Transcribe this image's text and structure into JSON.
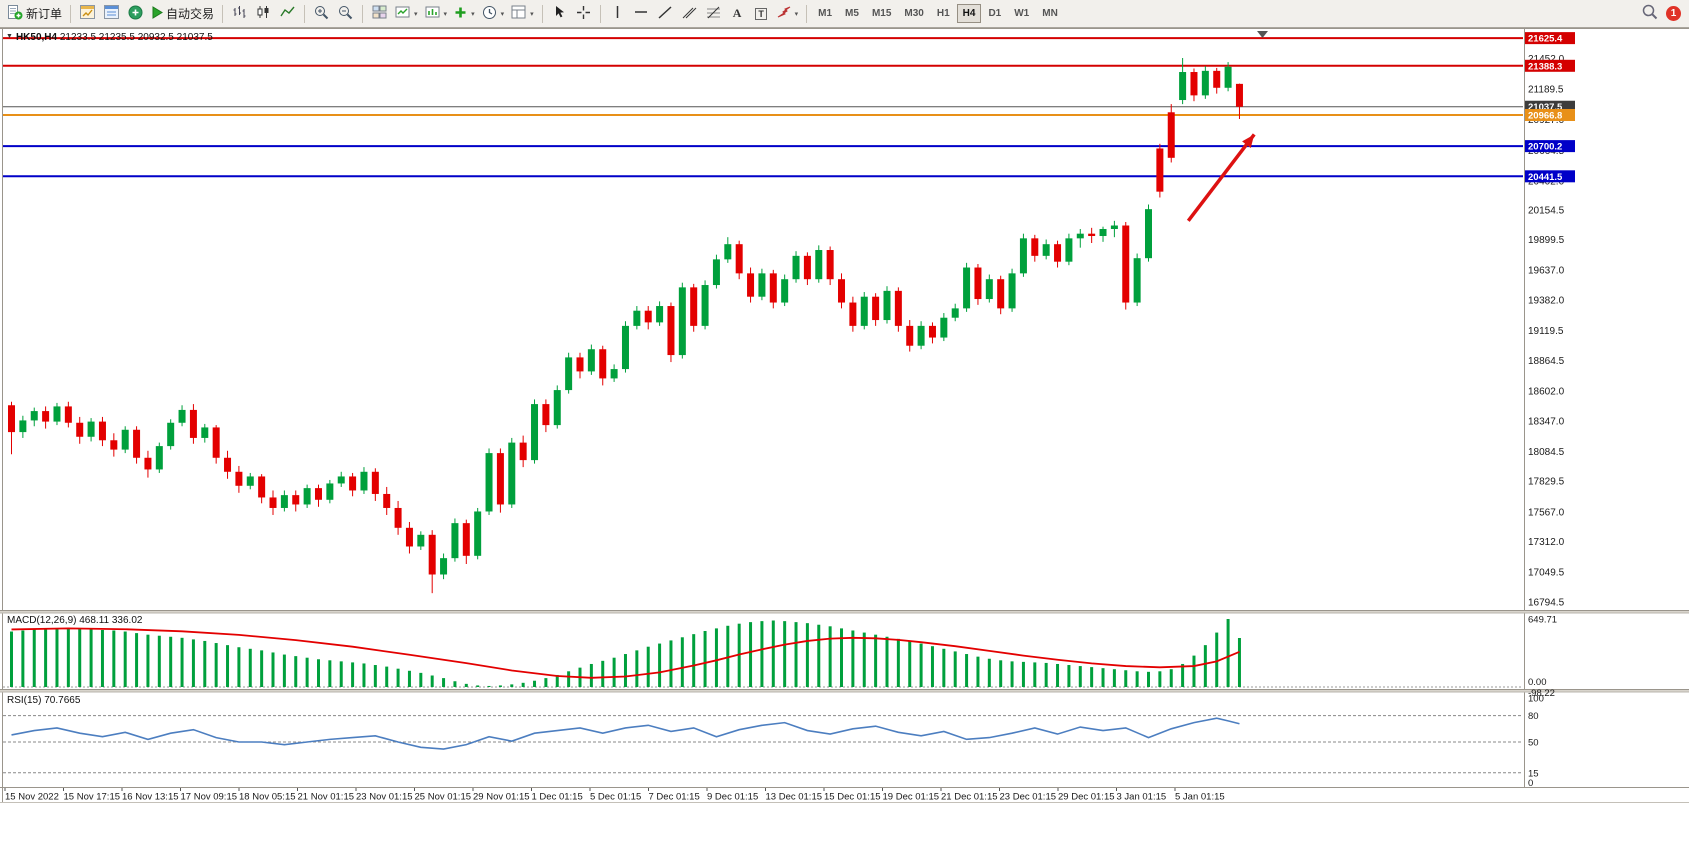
{
  "toolbar": {
    "new_order": "新订单",
    "autotrading": "自动交易",
    "text_tool": "A",
    "text_label_tool": "T",
    "timeframes": [
      {
        "label": "M1",
        "active": false
      },
      {
        "label": "M5",
        "active": false
      },
      {
        "label": "M15",
        "active": false
      },
      {
        "label": "M30",
        "active": false
      },
      {
        "label": "H1",
        "active": false
      },
      {
        "label": "H4",
        "active": true
      },
      {
        "label": "D1",
        "active": false
      },
      {
        "label": "W1",
        "active": false
      },
      {
        "label": "MN",
        "active": false
      }
    ],
    "notification_count": "1"
  },
  "chart": {
    "symbol_period": "HK50,H4",
    "ohlc_text": "21233.5 21235.5 20932.5 21037.5"
  },
  "macd": {
    "name": "MACD(12,26,9)",
    "main_value": "468.11",
    "signal_value": "336.02"
  },
  "rsi": {
    "name": "RSI(15)",
    "value": "70.7665"
  },
  "chart_data": {
    "type": "candlestick",
    "symbol": "HK50",
    "timeframe": "H4",
    "last_candle": {
      "open": 21233.5,
      "high": 21235.5,
      "low": 20932.5,
      "close": 21037.5
    },
    "price_visible_range": [
      16725,
      21695
    ],
    "colors": {
      "up": "#00A03C",
      "down": "#E30000",
      "macd_bar": "#00A03C",
      "macd_signal": "#E30000",
      "rsi": "#4C7EC0",
      "arrow": "#DD1111",
      "line_red": "#D40000",
      "line_blue": "#0000C8",
      "line_orange": "#E89018",
      "line_current": "#404040"
    },
    "hlines": [
      {
        "price": 21625.4,
        "color": "#D40000",
        "width": 2,
        "tag": true
      },
      {
        "price": 21388.3,
        "color": "#D40000",
        "width": 2,
        "tag": true
      },
      {
        "price": 21037.5,
        "color": "#555555",
        "width": 1,
        "tag": true,
        "tag_color": "#3C3C3C"
      },
      {
        "price": 20966.8,
        "color": "#E89018",
        "width": 2,
        "tag": true
      },
      {
        "price": 20700.2,
        "color": "#0000C8",
        "width": 2,
        "tag": true
      },
      {
        "price": 20441.5,
        "color": "#0000C8",
        "width": 2,
        "tag": true
      }
    ],
    "price_axis_labels": [
      21452.0,
      21189.5,
      20927.0,
      20664.5,
      20402.0,
      20154.5,
      19899.5,
      19637.0,
      19382.0,
      19119.5,
      18864.5,
      18602.0,
      18347.0,
      18084.5,
      17829.5,
      17567.0,
      17312.0,
      17049.5,
      16794.5
    ],
    "arrow": {
      "from": {
        "index": 103.5,
        "price": 20060
      },
      "to": {
        "index": 109.3,
        "price": 20800
      }
    },
    "time_labels": [
      "15 Nov 2022",
      "15 Nov 17:15",
      "16 Nov 13:15",
      "17 Nov 09:15",
      "18 Nov 05:15",
      "21 Nov 01:15",
      "23 Nov 01:15",
      "25 Nov 01:15",
      "29 Nov 01:15",
      "1 Dec 01:15",
      "5 Dec 01:15",
      "7 Dec 01:15",
      "9 Dec 01:15",
      "13 Dec 01:15",
      "15 Dec 01:15",
      "19 Dec 01:15",
      "21 Dec 01:15",
      "23 Dec 01:15",
      "29 Dec 01:15",
      "3 Jan 01:15",
      "5 Jan 01:15"
    ],
    "candles": [
      [
        18480,
        18510,
        18060,
        18250
      ],
      [
        18250,
        18390,
        18200,
        18350
      ],
      [
        18350,
        18460,
        18300,
        18430
      ],
      [
        18430,
        18470,
        18280,
        18340
      ],
      [
        18340,
        18500,
        18310,
        18470
      ],
      [
        18470,
        18510,
        18290,
        18330
      ],
      [
        18330,
        18380,
        18150,
        18210
      ],
      [
        18210,
        18370,
        18170,
        18340
      ],
      [
        18340,
        18380,
        18130,
        18180
      ],
      [
        18180,
        18240,
        18040,
        18100
      ],
      [
        18100,
        18300,
        18070,
        18270
      ],
      [
        18270,
        18300,
        17980,
        18030
      ],
      [
        18030,
        18090,
        17860,
        17930
      ],
      [
        17930,
        18160,
        17900,
        18130
      ],
      [
        18130,
        18360,
        18100,
        18330
      ],
      [
        18330,
        18480,
        18300,
        18440
      ],
      [
        18440,
        18490,
        18150,
        18200
      ],
      [
        18200,
        18320,
        18160,
        18290
      ],
      [
        18290,
        18310,
        17980,
        18030
      ],
      [
        18030,
        18090,
        17850,
        17910
      ],
      [
        17910,
        17960,
        17730,
        17790
      ],
      [
        17790,
        17900,
        17760,
        17870
      ],
      [
        17870,
        17890,
        17640,
        17690
      ],
      [
        17690,
        17750,
        17540,
        17600
      ],
      [
        17600,
        17750,
        17570,
        17710
      ],
      [
        17710,
        17750,
        17570,
        17630
      ],
      [
        17630,
        17800,
        17600,
        17770
      ],
      [
        17770,
        17800,
        17610,
        17670
      ],
      [
        17670,
        17840,
        17640,
        17810
      ],
      [
        17810,
        17910,
        17780,
        17870
      ],
      [
        17870,
        17900,
        17700,
        17750
      ],
      [
        17750,
        17950,
        17720,
        17910
      ],
      [
        17910,
        17940,
        17660,
        17720
      ],
      [
        17720,
        17780,
        17540,
        17600
      ],
      [
        17600,
        17660,
        17370,
        17430
      ],
      [
        17430,
        17480,
        17210,
        17270
      ],
      [
        17270,
        17400,
        17240,
        17370
      ],
      [
        17370,
        17410,
        16870,
        17030
      ],
      [
        17030,
        17210,
        16990,
        17170
      ],
      [
        17170,
        17510,
        17140,
        17470
      ],
      [
        17470,
        17500,
        17120,
        17190
      ],
      [
        17190,
        17600,
        17160,
        17570
      ],
      [
        17570,
        18110,
        17540,
        18070
      ],
      [
        18070,
        18110,
        17560,
        17630
      ],
      [
        17630,
        18200,
        17600,
        18160
      ],
      [
        18160,
        18220,
        17950,
        18010
      ],
      [
        18010,
        18530,
        17980,
        18490
      ],
      [
        18490,
        18530,
        18250,
        18310
      ],
      [
        18310,
        18650,
        18280,
        18610
      ],
      [
        18610,
        18930,
        18580,
        18890
      ],
      [
        18890,
        18930,
        18710,
        18770
      ],
      [
        18770,
        19000,
        18740,
        18960
      ],
      [
        18960,
        18990,
        18650,
        18710
      ],
      [
        18710,
        18830,
        18680,
        18790
      ],
      [
        18790,
        19200,
        18760,
        19160
      ],
      [
        19160,
        19330,
        19130,
        19290
      ],
      [
        19290,
        19330,
        19130,
        19190
      ],
      [
        19190,
        19370,
        19160,
        19330
      ],
      [
        19330,
        19360,
        18850,
        18910
      ],
      [
        18910,
        19530,
        18880,
        19490
      ],
      [
        19490,
        19520,
        19110,
        19160
      ],
      [
        19160,
        19550,
        19130,
        19510
      ],
      [
        19510,
        19770,
        19480,
        19730
      ],
      [
        19730,
        19920,
        19700,
        19860
      ],
      [
        19860,
        19890,
        19560,
        19610
      ],
      [
        19610,
        19660,
        19360,
        19410
      ],
      [
        19410,
        19650,
        19380,
        19610
      ],
      [
        19610,
        19640,
        19310,
        19360
      ],
      [
        19360,
        19600,
        19330,
        19560
      ],
      [
        19560,
        19800,
        19530,
        19760
      ],
      [
        19760,
        19790,
        19510,
        19560
      ],
      [
        19560,
        19850,
        19530,
        19810
      ],
      [
        19810,
        19840,
        19510,
        19560
      ],
      [
        19560,
        19610,
        19310,
        19360
      ],
      [
        19360,
        19410,
        19110,
        19160
      ],
      [
        19160,
        19450,
        19130,
        19410
      ],
      [
        19410,
        19440,
        19160,
        19210
      ],
      [
        19210,
        19500,
        19180,
        19460
      ],
      [
        19460,
        19490,
        19110,
        19160
      ],
      [
        19160,
        19210,
        18940,
        18990
      ],
      [
        18990,
        19200,
        18960,
        19160
      ],
      [
        19160,
        19190,
        19010,
        19060
      ],
      [
        19060,
        19270,
        19030,
        19230
      ],
      [
        19230,
        19350,
        19200,
        19310
      ],
      [
        19310,
        19700,
        19280,
        19660
      ],
      [
        19660,
        19690,
        19340,
        19390
      ],
      [
        19390,
        19600,
        19360,
        19560
      ],
      [
        19560,
        19590,
        19260,
        19310
      ],
      [
        19310,
        19650,
        19280,
        19610
      ],
      [
        19610,
        19950,
        19580,
        19910
      ],
      [
        19910,
        19940,
        19710,
        19760
      ],
      [
        19760,
        19900,
        19730,
        19860
      ],
      [
        19860,
        19890,
        19660,
        19710
      ],
      [
        19710,
        19950,
        19680,
        19910
      ],
      [
        19910,
        19990,
        19830,
        19950
      ],
      [
        19950,
        20000,
        19870,
        19930
      ],
      [
        19930,
        20010,
        19880,
        19990
      ],
      [
        19990,
        20060,
        19920,
        20020
      ],
      [
        20020,
        20050,
        19300,
        19360
      ],
      [
        19360,
        19780,
        19330,
        19740
      ],
      [
        19740,
        20200,
        19710,
        20160
      ],
      [
        20680,
        20720,
        20260,
        20310
      ],
      [
        20990,
        21060,
        20560,
        20600
      ],
      [
        21095,
        21455,
        21060,
        21335
      ],
      [
        21335,
        21365,
        21085,
        21135
      ],
      [
        21135,
        21385,
        21105,
        21345
      ],
      [
        21345,
        21370,
        21150,
        21200
      ],
      [
        21200,
        21420,
        21170,
        21380
      ],
      [
        21233.5,
        21235.5,
        20932.5,
        21037.5
      ]
    ],
    "macd": {
      "ylim": [
        -98.22,
        649.71
      ],
      "axis_labels": [
        "649.71",
        "0.00",
        "-98.22"
      ],
      "histogram": [
        530,
        540,
        550,
        555,
        560,
        560,
        555,
        550,
        545,
        540,
        530,
        515,
        500,
        490,
        480,
        470,
        455,
        440,
        420,
        400,
        380,
        365,
        350,
        330,
        310,
        295,
        280,
        265,
        255,
        245,
        235,
        225,
        210,
        195,
        175,
        155,
        135,
        110,
        85,
        55,
        30,
        15,
        10,
        15,
        25,
        40,
        60,
        85,
        115,
        150,
        185,
        220,
        250,
        280,
        315,
        350,
        385,
        415,
        445,
        475,
        505,
        535,
        560,
        585,
        605,
        620,
        630,
        635,
        630,
        620,
        610,
        595,
        580,
        560,
        540,
        520,
        500,
        480,
        460,
        440,
        415,
        390,
        365,
        340,
        315,
        290,
        270,
        255,
        245,
        240,
        235,
        230,
        220,
        210,
        200,
        190,
        180,
        170,
        160,
        150,
        145,
        150,
        170,
        220,
        300,
        400,
        520,
        649.71,
        468.11
      ],
      "signal": [
        [
          0,
          550
        ],
        [
          5,
          560
        ],
        [
          10,
          552
        ],
        [
          15,
          532
        ],
        [
          20,
          498
        ],
        [
          25,
          448
        ],
        [
          30,
          385
        ],
        [
          35,
          308
        ],
        [
          40,
          228
        ],
        [
          44,
          158
        ],
        [
          48,
          105
        ],
        [
          51,
          88
        ],
        [
          54,
          100
        ],
        [
          57,
          140
        ],
        [
          60,
          205
        ],
        [
          62,
          255
        ],
        [
          64,
          310
        ],
        [
          66,
          360
        ],
        [
          68,
          405
        ],
        [
          70,
          440
        ],
        [
          72,
          462
        ],
        [
          74,
          470
        ],
        [
          76,
          465
        ],
        [
          78,
          450
        ],
        [
          80,
          428
        ],
        [
          83,
          390
        ],
        [
          86,
          345
        ],
        [
          89,
          300
        ],
        [
          92,
          260
        ],
        [
          95,
          226
        ],
        [
          98,
          200
        ],
        [
          101,
          188
        ],
        [
          104,
          200
        ],
        [
          106,
          245
        ],
        [
          108,
          336.02
        ]
      ]
    },
    "rsi": {
      "ylim": [
        0,
        100
      ],
      "levels": [
        80,
        50,
        15
      ],
      "axis_labels": [
        "100",
        "80",
        "50",
        "15",
        "0"
      ],
      "current": 70.7665,
      "points": [
        [
          0,
          58
        ],
        [
          2,
          63
        ],
        [
          4,
          66
        ],
        [
          6,
          60
        ],
        [
          8,
          56
        ],
        [
          10,
          61
        ],
        [
          12,
          53
        ],
        [
          14,
          60
        ],
        [
          16,
          64
        ],
        [
          18,
          55
        ],
        [
          20,
          50
        ],
        [
          22,
          50
        ],
        [
          24,
          47
        ],
        [
          26,
          50
        ],
        [
          28,
          53
        ],
        [
          30,
          55
        ],
        [
          32,
          57
        ],
        [
          34,
          50
        ],
        [
          36,
          44
        ],
        [
          38,
          42
        ],
        [
          40,
          47
        ],
        [
          42,
          56
        ],
        [
          44,
          51
        ],
        [
          46,
          60
        ],
        [
          48,
          63
        ],
        [
          50,
          66
        ],
        [
          52,
          60
        ],
        [
          54,
          66
        ],
        [
          56,
          69
        ],
        [
          58,
          62
        ],
        [
          60,
          66
        ],
        [
          62,
          56
        ],
        [
          64,
          64
        ],
        [
          66,
          69
        ],
        [
          68,
          72
        ],
        [
          70,
          63
        ],
        [
          72,
          59
        ],
        [
          74,
          65
        ],
        [
          76,
          68
        ],
        [
          78,
          61
        ],
        [
          80,
          57
        ],
        [
          82,
          62
        ],
        [
          84,
          53
        ],
        [
          86,
          55
        ],
        [
          88,
          60
        ],
        [
          90,
          66
        ],
        [
          92,
          59
        ],
        [
          94,
          67
        ],
        [
          96,
          63
        ],
        [
          98,
          66
        ],
        [
          100,
          55
        ],
        [
          102,
          65
        ],
        [
          104,
          72
        ],
        [
          106,
          77
        ],
        [
          107,
          74
        ],
        [
          108,
          70.77
        ]
      ]
    }
  }
}
